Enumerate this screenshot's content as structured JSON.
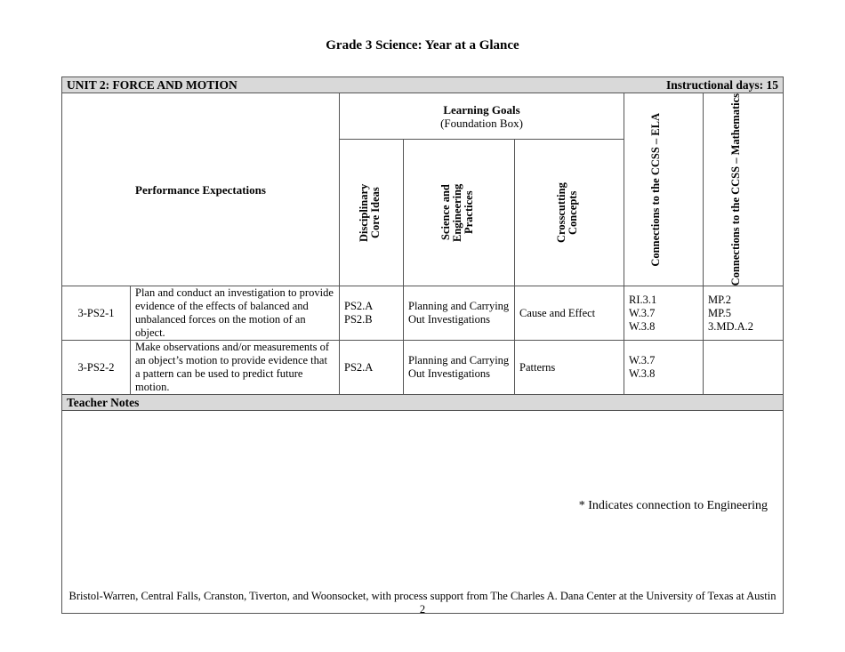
{
  "title": "Grade 3 Science: Year at a Glance",
  "unit": {
    "name": "UNIT 2: FORCE AND MOTION",
    "days": "Instructional days: 15"
  },
  "headers": {
    "pe": "Performance Expectations",
    "lg": "Learning Goals",
    "lg_sub": "(Foundation Box)",
    "dci": "Disciplinary Core Ideas",
    "sep": "Science and Engineering Practices",
    "ccc": "Crosscutting Concepts",
    "ela": "Connections to the CCSS – ELA",
    "math": "Connections to the CCSS – Mathematics"
  },
  "rows": [
    {
      "id": "3-PS2-1",
      "desc": "Plan and conduct an investigation to provide evidence of the effects of balanced and unbalanced forces on the motion of an object.",
      "dci": [
        "PS2.A",
        "PS2.B"
      ],
      "sep": "Planning and Carrying Out Investigations",
      "ccc": "Cause and Effect",
      "ela": [
        "RI.3.1",
        "W.3.7",
        "W.3.8"
      ],
      "math": [
        "MP.2",
        "MP.5",
        "3.MD.A.2"
      ]
    },
    {
      "id": "3-PS2-2",
      "desc": "Make observations and/or measurements of an object’s motion to provide evidence that a pattern can be used to predict future motion.",
      "dci": [
        "PS2.A"
      ],
      "sep": "Planning and Carrying Out Investigations",
      "ccc": "Patterns",
      "ela": [
        "W.3.7",
        "W.3.8"
      ],
      "math": []
    }
  ],
  "teacher_notes": "Teacher Notes",
  "footnote": "* Indicates connection to Engineering",
  "credit": "Bristol-Warren, Central Falls, Cranston, Tiverton, and Woonsocket, with process support from The Charles A. Dana Center at the University of Texas at Austin",
  "page_number": "2"
}
